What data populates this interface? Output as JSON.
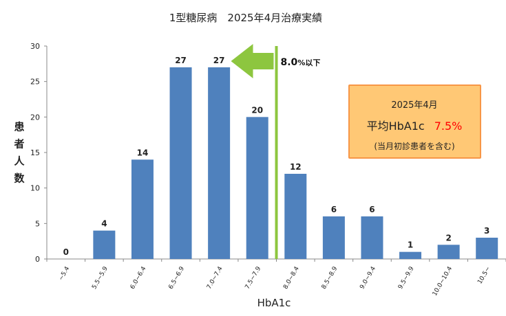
{
  "chart_data": {
    "type": "bar",
    "title": "1型糖尿病　2025年4月治療実績",
    "xlabel": "HbA1c",
    "ylabel": "患者人数",
    "ylim": [
      0,
      30
    ],
    "yticks": [
      0,
      5,
      10,
      15,
      20,
      25,
      30
    ],
    "categories": [
      "~5.4",
      "5.5~5.9",
      "6.0~6.4",
      "6.5~6.9",
      "7.0~7.4",
      "7.5~7.9",
      "8.0~8.4",
      "8.5~8.9",
      "9.0~9.4",
      "9.5~9.9",
      "10.0~10.4",
      "10.5~"
    ],
    "values": [
      0,
      4,
      14,
      27,
      27,
      20,
      12,
      6,
      6,
      1,
      2,
      3
    ],
    "bar_color": "#4f81bd",
    "grid": false,
    "threshold": {
      "at_category_index": 6,
      "label_main": "8.0",
      "label_small": "%以下",
      "color": "#8dc63f"
    },
    "callout": {
      "line1": "2025年4月",
      "line2_prefix": "平均HbA1c",
      "line2_value": "7.5%",
      "line3": "(当月初診患者を含む)",
      "fill": "#ffc875",
      "border": "#f79646",
      "value_color": "#ff0000"
    }
  }
}
